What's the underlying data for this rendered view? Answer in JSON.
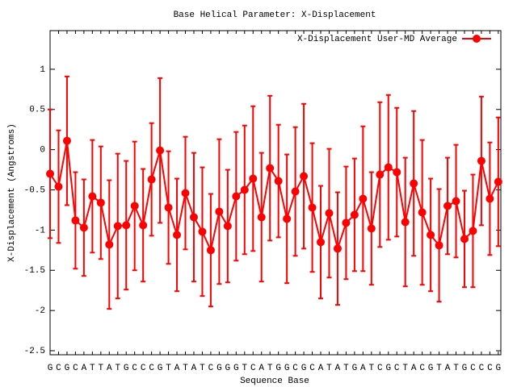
{
  "chart_data": {
    "type": "errorbar_line",
    "title": "Base  Helical Parameter: X-Displacement",
    "xlabel": "Sequence Base",
    "ylabel": "X-Displacement (Angstroms)",
    "categories": [
      "G",
      "C",
      "G",
      "C",
      "A",
      "T",
      "T",
      "A",
      "T",
      "G",
      "C",
      "C",
      "C",
      "G",
      "T",
      "A",
      "T",
      "A",
      "T",
      "C",
      "G",
      "G",
      "G",
      "T",
      "C",
      "A",
      "T",
      "G",
      "G",
      "C",
      "G",
      "C",
      "A",
      "T",
      "A",
      "T",
      "G",
      "A",
      "T",
      "C",
      "G",
      "C",
      "T",
      "A",
      "C",
      "G",
      "T",
      "A",
      "T",
      "G",
      "C",
      "C",
      "C",
      "G"
    ],
    "series": [
      {
        "name": "X-Displacement User-MD Average",
        "color": "#ff0000",
        "values": [
          -0.3,
          -0.46,
          0.11,
          -0.88,
          -0.97,
          -0.58,
          -0.66,
          -1.18,
          -0.95,
          -0.94,
          -0.7,
          -0.94,
          -0.37,
          -0.01,
          -0.72,
          -1.06,
          -0.54,
          -0.84,
          -1.02,
          -1.25,
          -0.77,
          -0.95,
          -0.58,
          -0.5,
          -0.36,
          -0.84,
          -0.23,
          -0.39,
          -0.86,
          -0.52,
          -0.33,
          -0.72,
          -1.15,
          -0.79,
          -1.23,
          -0.91,
          -0.81,
          -0.61,
          -0.98,
          -0.31,
          -0.22,
          -0.28,
          -0.9,
          -0.42,
          -0.78,
          -1.06,
          -1.19,
          -0.7,
          -0.64,
          -1.11,
          -1.01,
          -0.14,
          -0.61,
          -0.4
        ],
        "errors": [
          0.8,
          0.7,
          0.8,
          0.6,
          0.6,
          0.7,
          0.7,
          0.8,
          0.9,
          0.8,
          0.8,
          0.7,
          0.7,
          0.9,
          0.7,
          0.7,
          0.7,
          0.8,
          0.8,
          0.7,
          0.9,
          0.7,
          0.8,
          0.8,
          0.9,
          0.8,
          0.9,
          0.7,
          0.8,
          0.8,
          0.9,
          0.8,
          0.7,
          0.8,
          0.7,
          0.7,
          0.7,
          0.9,
          0.7,
          0.9,
          0.9,
          0.8,
          0.8,
          0.9,
          0.9,
          0.7,
          0.7,
          0.6,
          0.7,
          0.6,
          0.7,
          0.8,
          0.7,
          0.8
        ]
      }
    ],
    "ylim": [
      -2.55,
      1.48
    ],
    "yticks": [
      -2.5,
      -2,
      -1.5,
      -1,
      -0.5,
      0,
      0.5,
      1
    ],
    "legend": "top-right",
    "grid": false
  }
}
